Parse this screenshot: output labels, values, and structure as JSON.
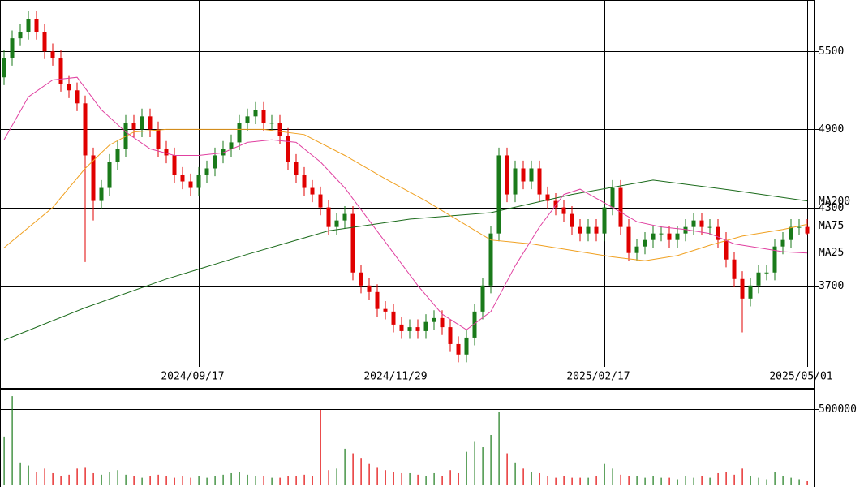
{
  "chart_data": {
    "type": "candlestick",
    "open": [
      5300,
      5450,
      5600,
      5650,
      5750,
      5650,
      5500,
      5450,
      5250,
      5200,
      5100,
      4700,
      4350,
      4450,
      4650,
      4750,
      4950,
      4900,
      5000,
      4900,
      4750,
      4700,
      4550,
      4500,
      4450,
      4550,
      4600,
      4700,
      4750,
      4800,
      4950,
      5000,
      5050,
      4950,
      4950,
      4850,
      4650,
      4550,
      4450,
      4400,
      4300,
      4150,
      4200,
      4250,
      3800,
      3700,
      3650,
      3520,
      3500,
      3400,
      3350,
      3380,
      3350,
      3420,
      3450,
      3380,
      3250,
      3170,
      3300,
      3500,
      3700,
      4100,
      4700,
      4400,
      4600,
      4500,
      4600,
      4400,
      4350,
      4300,
      4250,
      4150,
      4100,
      4150,
      4100,
      4300,
      4450,
      4150,
      3950,
      4000,
      4050,
      4100,
      4100,
      4050,
      4100,
      4150,
      4200,
      4150,
      4150,
      4050,
      3900,
      3750,
      3600,
      3700,
      3800,
      3800,
      4000,
      4050,
      4150,
      4150
    ],
    "high": [
      5510,
      5660,
      5710,
      5810,
      5810,
      5710,
      5560,
      5510,
      5310,
      5260,
      5160,
      4760,
      4510,
      4710,
      4810,
      5010,
      5010,
      5060,
      5060,
      4960,
      4810,
      4760,
      4610,
      4560,
      4610,
      4660,
      4760,
      4810,
      4860,
      5010,
      5060,
      5110,
      5110,
      5010,
      5010,
      4910,
      4710,
      4610,
      4510,
      4460,
      4360,
      4260,
      4310,
      4310,
      3860,
      3760,
      3710,
      3580,
      3560,
      3460,
      3440,
      3440,
      3480,
      3510,
      3510,
      3440,
      3310,
      3360,
      3560,
      3760,
      4160,
      4760,
      4760,
      4660,
      4660,
      4660,
      4660,
      4460,
      4410,
      4360,
      4310,
      4210,
      4210,
      4210,
      4360,
      4510,
      4510,
      4210,
      4060,
      4110,
      4160,
      4160,
      4160,
      4160,
      4210,
      4260,
      4260,
      4210,
      4210,
      4110,
      3960,
      3810,
      3760,
      3860,
      3860,
      4060,
      4110,
      4210,
      4210,
      4210
    ],
    "low": [
      5240,
      5390,
      5540,
      5590,
      5590,
      5440,
      5390,
      5190,
      5140,
      5040,
      3880,
      4200,
      4290,
      4390,
      4590,
      4690,
      4840,
      4840,
      4840,
      4690,
      4640,
      4490,
      4440,
      4390,
      4390,
      4490,
      4540,
      4640,
      4690,
      4740,
      4890,
      4940,
      4890,
      4890,
      4790,
      4590,
      4490,
      4390,
      4340,
      4240,
      4090,
      4090,
      4140,
      3740,
      3640,
      3590,
      3460,
      3440,
      3340,
      3290,
      3290,
      3290,
      3290,
      3360,
      3320,
      3190,
      3110,
      3110,
      3240,
      3440,
      3640,
      4040,
      4340,
      4340,
      4440,
      4440,
      4340,
      4290,
      4240,
      4190,
      4090,
      4040,
      4040,
      4040,
      4040,
      4240,
      4090,
      3890,
      3890,
      3940,
      3990,
      4040,
      3990,
      3990,
      4040,
      4090,
      4090,
      4090,
      3990,
      3840,
      3690,
      3340,
      3540,
      3640,
      3740,
      3740,
      3940,
      3990,
      4090,
      4090
    ],
    "close": [
      5450,
      5600,
      5650,
      5750,
      5650,
      5500,
      5450,
      5250,
      5200,
      5100,
      4700,
      4350,
      4450,
      4650,
      4750,
      4950,
      4900,
      5000,
      4900,
      4750,
      4700,
      4550,
      4500,
      4450,
      4550,
      4600,
      4700,
      4750,
      4800,
      4950,
      5000,
      5050,
      4950,
      4950,
      4850,
      4650,
      4550,
      4450,
      4400,
      4300,
      4150,
      4200,
      4250,
      3800,
      3700,
      3650,
      3520,
      3500,
      3400,
      3350,
      3380,
      3350,
      3420,
      3450,
      3380,
      3250,
      3170,
      3300,
      3500,
      3700,
      4100,
      4700,
      4400,
      4600,
      4500,
      4600,
      4400,
      4350,
      4300,
      4250,
      4150,
      4100,
      4150,
      4100,
      4300,
      4450,
      4150,
      3950,
      4000,
      4050,
      4100,
      4100,
      4050,
      4100,
      4150,
      4200,
      4150,
      4150,
      4050,
      3900,
      3750,
      3600,
      3700,
      3800,
      3800,
      4000,
      4050,
      4150,
      4150,
      4100
    ],
    "up_color": "#1a7a1a",
    "down_color": "#e00000",
    "xlim": [
      -0.5,
      99.5
    ],
    "xticks": [
      {
        "value": 24,
        "label": "2024/09/17"
      },
      {
        "value": 49,
        "label": "2024/11/29"
      },
      {
        "value": 74,
        "label": "2025/02/17"
      },
      {
        "value": 99,
        "label": "2025/05/01"
      }
    ],
    "ylim": [
      3100,
      5894
    ],
    "yticks": [
      3700,
      4300,
      4900,
      5500
    ],
    "series": [
      {
        "name": "MA200",
        "color": "#1a6a1a",
        "x": [
          0,
          10,
          20,
          30,
          40,
          50,
          60,
          70,
          80,
          90,
          99
        ],
        "values": [
          3280,
          3530,
          3750,
          3940,
          4120,
          4210,
          4260,
          4400,
          4510,
          4430,
          4350
        ]
      },
      {
        "name": "MA75",
        "color": "#f0a020",
        "x": [
          0,
          6,
          10,
          13,
          16,
          20,
          26,
          32,
          37,
          42,
          47,
          52,
          56,
          60,
          65,
          70,
          75,
          79,
          83,
          87,
          91,
          96,
          99
        ],
        "values": [
          3990,
          4300,
          4600,
          4780,
          4880,
          4900,
          4900,
          4900,
          4860,
          4700,
          4520,
          4350,
          4200,
          4050,
          4020,
          3970,
          3920,
          3890,
          3930,
          4010,
          4080,
          4130,
          4170
        ]
      },
      {
        "name": "MA25",
        "color": "#e040a0",
        "x": [
          0,
          3,
          6,
          9,
          12,
          15,
          18,
          21,
          24,
          27,
          30,
          33,
          36,
          39,
          42,
          45,
          48,
          51,
          54,
          57,
          60,
          63,
          66,
          69,
          71,
          75,
          78,
          81,
          84,
          87,
          90,
          93,
          96,
          99
        ],
        "values": [
          4820,
          5150,
          5280,
          5300,
          5050,
          4880,
          4750,
          4700,
          4700,
          4720,
          4800,
          4820,
          4800,
          4650,
          4450,
          4200,
          3950,
          3700,
          3480,
          3360,
          3500,
          3850,
          4150,
          4400,
          4440,
          4300,
          4190,
          4150,
          4130,
          4100,
          4020,
          3990,
          3960,
          3950
        ]
      }
    ],
    "volume": {
      "values": [
        320000,
        585000,
        150000,
        130000,
        90000,
        110000,
        80000,
        60000,
        70000,
        110000,
        120000,
        80000,
        70000,
        90000,
        100000,
        70000,
        60000,
        50000,
        60000,
        70000,
        60000,
        50000,
        60000,
        50000,
        60000,
        50000,
        60000,
        70000,
        80000,
        90000,
        70000,
        60000,
        60000,
        50000,
        50000,
        60000,
        60000,
        70000,
        60000,
        495000,
        100000,
        110000,
        240000,
        210000,
        180000,
        140000,
        120000,
        100000,
        90000,
        80000,
        80000,
        70000,
        60000,
        80000,
        60000,
        100000,
        80000,
        220000,
        290000,
        250000,
        330000,
        480000,
        210000,
        150000,
        110000,
        90000,
        80000,
        60000,
        50000,
        60000,
        50000,
        50000,
        50000,
        60000,
        140000,
        110000,
        70000,
        60000,
        60000,
        50000,
        60000,
        50000,
        50000,
        40000,
        60000,
        50000,
        60000,
        50000,
        80000,
        90000,
        70000,
        110000,
        60000,
        50000,
        40000,
        90000,
        60000,
        50000,
        40000,
        30000
      ],
      "ylim": [
        0,
        628000
      ],
      "yticks": [
        500000
      ]
    }
  }
}
